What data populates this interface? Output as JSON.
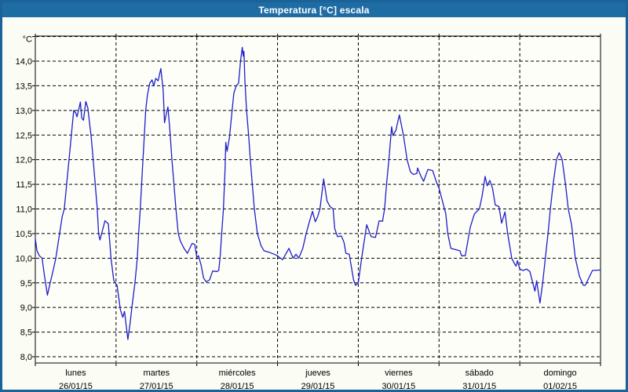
{
  "window": {
    "title": "Temperatura [°C] escala",
    "titlebar_color": "#1E6CA4",
    "border_color": "#1A6297",
    "background_color": "#FBFCF4"
  },
  "chart_data": {
    "type": "line",
    "title": "Temperatura [°C] escala",
    "unit_label": "°C",
    "line_color": "#1E1EC8",
    "plot_background": "#FEFEF9",
    "grid_color": "#000000",
    "ylim": [
      8.0,
      14.5
    ],
    "grid_step": 0.5,
    "y_tick_labels": [
      "8,0",
      "8,5",
      "9,0",
      "9,5",
      "10,0",
      "10,5",
      "11,0",
      "11,5",
      "12,0",
      "12,5",
      "13,0",
      "13,5",
      "14,0"
    ],
    "x_days": [
      {
        "name": "lunes",
        "date": "26/01/15"
      },
      {
        "name": "martes",
        "date": "27/01/15"
      },
      {
        "name": "miércoles",
        "date": "28/01/15"
      },
      {
        "name": "jueves",
        "date": "29/01/15"
      },
      {
        "name": "viernes",
        "date": "30/01/15"
      },
      {
        "name": "sábado",
        "date": "31/01/15"
      },
      {
        "name": "domingo",
        "date": "01/02/15"
      }
    ],
    "x_unit": "hours",
    "x_range_hours": [
      0,
      168
    ],
    "series": [
      {
        "name": "Temperatura",
        "points": [
          [
            0,
            10.4
          ],
          [
            0.5,
            10.15
          ],
          [
            1.2,
            10.05
          ],
          [
            2,
            10.0
          ],
          [
            2.7,
            9.65
          ],
          [
            3.6,
            9.25
          ],
          [
            4.4,
            9.5
          ],
          [
            5.3,
            9.75
          ],
          [
            6.1,
            10.0
          ],
          [
            7.2,
            10.5
          ],
          [
            8.0,
            10.85
          ],
          [
            8.6,
            11.0
          ],
          [
            9.3,
            11.5
          ],
          [
            10.0,
            12.0
          ],
          [
            10.7,
            12.5
          ],
          [
            11.4,
            13.0
          ],
          [
            12.0,
            12.95
          ],
          [
            12.4,
            12.87
          ],
          [
            13.0,
            13.05
          ],
          [
            13.4,
            13.17
          ],
          [
            13.8,
            12.85
          ],
          [
            14.3,
            12.8
          ],
          [
            15.0,
            13.18
          ],
          [
            15.6,
            13.05
          ],
          [
            16.2,
            12.7
          ],
          [
            16.6,
            12.48
          ],
          [
            17.2,
            12.0
          ],
          [
            17.8,
            11.5
          ],
          [
            18.4,
            11.0
          ],
          [
            18.8,
            10.5
          ],
          [
            19.2,
            10.37
          ],
          [
            19.9,
            10.55
          ],
          [
            20.7,
            10.76
          ],
          [
            21.7,
            10.7
          ],
          [
            22.5,
            10.0
          ],
          [
            23.3,
            9.55
          ],
          [
            23.8,
            9.5
          ],
          [
            24.3,
            9.45
          ],
          [
            25.3,
            8.95
          ],
          [
            26.0,
            8.8
          ],
          [
            26.5,
            8.92
          ],
          [
            27.5,
            8.35
          ],
          [
            28.2,
            8.7
          ],
          [
            28.7,
            9.0
          ],
          [
            29.6,
            9.5
          ],
          [
            30.3,
            10.0
          ],
          [
            30.7,
            10.5
          ],
          [
            31.2,
            11.0
          ],
          [
            31.6,
            11.5
          ],
          [
            32.0,
            12.0
          ],
          [
            32.4,
            12.5
          ],
          [
            32.8,
            13.0
          ],
          [
            33.3,
            13.3
          ],
          [
            34.0,
            13.55
          ],
          [
            34.7,
            13.62
          ],
          [
            35.2,
            13.5
          ],
          [
            35.8,
            13.65
          ],
          [
            36.5,
            13.6
          ],
          [
            37.3,
            13.85
          ],
          [
            38.0,
            13.4
          ],
          [
            38.4,
            12.75
          ],
          [
            39.0,
            12.95
          ],
          [
            39.4,
            13.07
          ],
          [
            40.0,
            12.6
          ],
          [
            40.6,
            12.0
          ],
          [
            41.2,
            11.5
          ],
          [
            41.8,
            11.0
          ],
          [
            42.5,
            10.5
          ],
          [
            43.1,
            10.35
          ],
          [
            44.2,
            10.2
          ],
          [
            45.2,
            10.1
          ],
          [
            46.6,
            10.3
          ],
          [
            47.4,
            10.28
          ],
          [
            48.0,
            10.02
          ],
          [
            48.5,
            10.05
          ],
          [
            49.3,
            9.85
          ],
          [
            50.0,
            9.6
          ],
          [
            50.8,
            9.52
          ],
          [
            51.8,
            9.56
          ],
          [
            52.7,
            9.74
          ],
          [
            54.0,
            9.73
          ],
          [
            54.5,
            9.75
          ],
          [
            54.9,
            10.0
          ],
          [
            55.4,
            10.5
          ],
          [
            55.9,
            11.0
          ],
          [
            56.4,
            11.8
          ],
          [
            56.6,
            12.35
          ],
          [
            57.0,
            12.17
          ],
          [
            57.7,
            12.45
          ],
          [
            58.5,
            13.0
          ],
          [
            59.0,
            13.35
          ],
          [
            59.7,
            13.5
          ],
          [
            60.4,
            13.55
          ],
          [
            61.0,
            14.0
          ],
          [
            61.5,
            14.28
          ],
          [
            61.8,
            14.1
          ],
          [
            62.0,
            14.2
          ],
          [
            62.3,
            13.6
          ],
          [
            62.8,
            13.0
          ],
          [
            63.4,
            12.5
          ],
          [
            63.9,
            12.0
          ],
          [
            64.5,
            11.5
          ],
          [
            65.1,
            11.0
          ],
          [
            66.0,
            10.5
          ],
          [
            67.1,
            10.25
          ],
          [
            68.0,
            10.15
          ],
          [
            69.5,
            10.12
          ],
          [
            71.0,
            10.08
          ],
          [
            72.0,
            10.05
          ],
          [
            72.5,
            10.02
          ],
          [
            73.5,
            9.97
          ],
          [
            75.4,
            10.2
          ],
          [
            76.6,
            10.0
          ],
          [
            77.5,
            10.08
          ],
          [
            78.3,
            10.0
          ],
          [
            79.5,
            10.2
          ],
          [
            80.5,
            10.5
          ],
          [
            81.5,
            10.75
          ],
          [
            82.4,
            10.95
          ],
          [
            83.2,
            10.74
          ],
          [
            83.9,
            10.84
          ],
          [
            84.6,
            11.0
          ],
          [
            85.7,
            11.61
          ],
          [
            86.7,
            11.16
          ],
          [
            87.6,
            11.05
          ],
          [
            88.5,
            11.0
          ],
          [
            89.0,
            10.6
          ],
          [
            89.8,
            10.44
          ],
          [
            91.0,
            10.45
          ],
          [
            91.8,
            10.31
          ],
          [
            92.3,
            10.1
          ],
          [
            93.3,
            10.08
          ],
          [
            94.6,
            9.56
          ],
          [
            95.2,
            9.45
          ],
          [
            96.0,
            9.5
          ],
          [
            96.4,
            9.7
          ],
          [
            97.0,
            10.0
          ],
          [
            98.5,
            10.68
          ],
          [
            99.8,
            10.44
          ],
          [
            101.1,
            10.42
          ],
          [
            102.2,
            10.76
          ],
          [
            103.2,
            10.75
          ],
          [
            103.8,
            11.0
          ],
          [
            104.4,
            11.5
          ],
          [
            105.1,
            12.0
          ],
          [
            105.9,
            12.67
          ],
          [
            106.3,
            12.49
          ],
          [
            107.2,
            12.6
          ],
          [
            108.2,
            12.91
          ],
          [
            109.4,
            12.5
          ],
          [
            110.5,
            12.0
          ],
          [
            111.5,
            11.75
          ],
          [
            112.4,
            11.7
          ],
          [
            113.4,
            11.72
          ],
          [
            113.6,
            11.83
          ],
          [
            114.6,
            11.67
          ],
          [
            115.4,
            11.56
          ],
          [
            116.7,
            11.8
          ],
          [
            118.1,
            11.78
          ],
          [
            119.3,
            11.53
          ],
          [
            120.0,
            11.42
          ],
          [
            122.0,
            10.9
          ],
          [
            122.6,
            10.5
          ],
          [
            123.5,
            10.2
          ],
          [
            126.2,
            10.15
          ],
          [
            126.7,
            10.05
          ],
          [
            127.8,
            10.05
          ],
          [
            129.3,
            10.63
          ],
          [
            130.5,
            10.9
          ],
          [
            132.0,
            11.0
          ],
          [
            132.8,
            11.26
          ],
          [
            133.7,
            11.66
          ],
          [
            134.3,
            11.47
          ],
          [
            135.1,
            11.58
          ],
          [
            135.9,
            11.42
          ],
          [
            136.7,
            11.08
          ],
          [
            137.8,
            11.05
          ],
          [
            138.6,
            10.71
          ],
          [
            139.6,
            10.94
          ],
          [
            140.4,
            10.5
          ],
          [
            141.6,
            10.0
          ],
          [
            142.4,
            9.89
          ],
          [
            142.9,
            9.84
          ],
          [
            143.3,
            9.95
          ],
          [
            144.0,
            9.78
          ],
          [
            145.0,
            9.75
          ],
          [
            146.0,
            9.78
          ],
          [
            147.0,
            9.73
          ],
          [
            147.7,
            9.54
          ],
          [
            148.5,
            9.33
          ],
          [
            149.0,
            9.54
          ],
          [
            150.0,
            9.09
          ],
          [
            150.8,
            9.5
          ],
          [
            151.6,
            10.0
          ],
          [
            152.4,
            10.5
          ],
          [
            153.1,
            11.0
          ],
          [
            153.9,
            11.5
          ],
          [
            154.9,
            12.0
          ],
          [
            155.7,
            12.14
          ],
          [
            156.3,
            12.05
          ],
          [
            156.6,
            12.0
          ],
          [
            157.6,
            11.5
          ],
          [
            158.4,
            11.0
          ],
          [
            159.4,
            10.68
          ],
          [
            160.5,
            10.0
          ],
          [
            161.7,
            9.64
          ],
          [
            162.9,
            9.45
          ],
          [
            163.5,
            9.45
          ],
          [
            164.8,
            9.64
          ],
          [
            165.6,
            9.75
          ],
          [
            168.0,
            9.76
          ]
        ]
      }
    ]
  }
}
